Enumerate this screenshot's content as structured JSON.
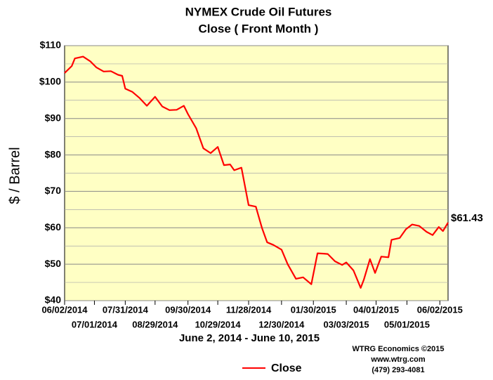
{
  "chart_data": {
    "type": "line",
    "title": "NYMEX Crude Oil Futures",
    "subtitle": "Close ( Front Month )",
    "xlabel": "June 2, 2014 - June 10, 2015",
    "ylabel": "$ / Barrel",
    "credits": [
      "WTRG Economics  ©2015",
      "www.wtrg.com",
      "(479) 293-4081"
    ],
    "end_label": "$61.43",
    "x": [
      "06/02/2014",
      "06/09/2014",
      "06/12/2014",
      "06/20/2014",
      "06/27/2014",
      "07/03/2014",
      "07/10/2014",
      "07/17/2014",
      "07/24/2014",
      "07/28/2014",
      "07/31/2014",
      "08/07/2014",
      "08/14/2014",
      "08/21/2014",
      "08/29/2014",
      "09/05/2014",
      "09/12/2014",
      "09/19/2014",
      "09/26/2014",
      "09/30/2014",
      "10/08/2014",
      "10/15/2014",
      "10/22/2014",
      "10/29/2014",
      "11/04/2014",
      "11/10/2014",
      "11/14/2014",
      "11/21/2014",
      "11/28/2014",
      "12/05/2014",
      "12/11/2014",
      "12/16/2014",
      "12/22/2014",
      "12/30/2014",
      "01/05/2015",
      "01/13/2015",
      "01/20/2015",
      "01/28/2015",
      "02/03/2015",
      "02/09/2015",
      "02/13/2015",
      "02/20/2015",
      "02/27/2015",
      "03/03/2015",
      "03/10/2015",
      "03/17/2015",
      "03/20/2015",
      "03/26/2015",
      "03/31/2015",
      "04/06/2015",
      "04/13/2015",
      "04/16/2015",
      "04/24/2015",
      "04/30/2015",
      "05/06/2015",
      "05/13/2015",
      "05/20/2015",
      "05/26/2015",
      "06/01/2015",
      "06/05/2015",
      "06/10/2015"
    ],
    "series": [
      {
        "name": "Close",
        "color": "#ff0000",
        "values": [
          102.5,
          104.4,
          106.5,
          107,
          105.7,
          104,
          102.9,
          103,
          102,
          101.7,
          98.2,
          97.3,
          95.6,
          93.5,
          95.96,
          93.3,
          92.3,
          92.4,
          93.5,
          91.2,
          87.3,
          81.8,
          80.5,
          82.2,
          77.2,
          77.4,
          75.8,
          76.5,
          66.2,
          65.8,
          59.9,
          56,
          55.3,
          54,
          50,
          46,
          46.4,
          44.5,
          53,
          52.9,
          52.8,
          50.8,
          49.8,
          50.5,
          48.3,
          43.5,
          45.7,
          51.4,
          47.6,
          52.1,
          51.9,
          56.7,
          57.2,
          59.6,
          60.9,
          60.5,
          58.9,
          58,
          60.2,
          59.1,
          61.43
        ]
      }
    ],
    "xlim": [
      "06/02/2014",
      "06/10/2015"
    ],
    "xticks": [
      "06/02/2014",
      "07/01/2014",
      "07/31/2014",
      "08/29/2014",
      "09/30/2014",
      "10/29/2014",
      "11/28/2014",
      "12/30/2014",
      "01/30/2015",
      "03/03/2015",
      "04/01/2015",
      "05/01/2015",
      "06/02/2015"
    ],
    "ylim": [
      40,
      110
    ],
    "yticks": [
      {
        "value": 40,
        "label": "$40"
      },
      {
        "value": 50,
        "label": "$50"
      },
      {
        "value": 60,
        "label": "$60"
      },
      {
        "value": 70,
        "label": "$70"
      },
      {
        "value": 80,
        "label": "$80"
      },
      {
        "value": 90,
        "label": "$90"
      },
      {
        "value": 100,
        "label": "$100"
      },
      {
        "value": 110,
        "label": "$110"
      }
    ],
    "grid": true
  }
}
